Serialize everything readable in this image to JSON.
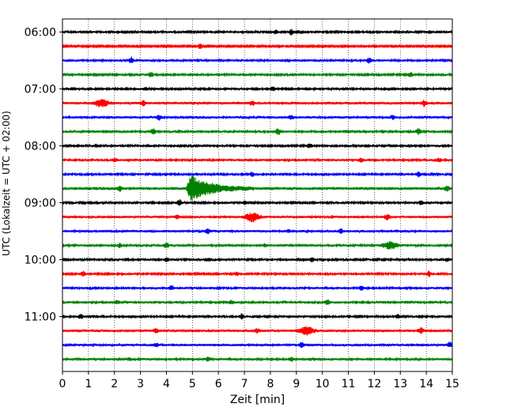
{
  "chart_data": {
    "type": "line",
    "title": "",
    "xlabel": "Zeit  [min]",
    "ylabel": "UTC (Lokalzeit = UTC + 02:00)",
    "xlim": [
      0,
      15
    ],
    "x_ticks": [
      0,
      1,
      2,
      3,
      4,
      5,
      6,
      7,
      8,
      9,
      10,
      11,
      12,
      13,
      14,
      15
    ],
    "y_tick_labels": [
      "06:00",
      "07:00",
      "08:00",
      "09:00",
      "10:00",
      "11:00"
    ],
    "y_tick_rows": [
      0,
      4,
      8,
      12,
      16,
      20
    ],
    "grid": "vertical-dotted",
    "colors": [
      "#000000",
      "#ff0000",
      "#0000ff",
      "#008000"
    ],
    "rows": [
      {
        "label": "06:00",
        "color": "#000000",
        "events": [
          [
            8.8,
            3
          ],
          [
            8.2,
            2
          ]
        ],
        "noise": 1.0
      },
      {
        "label": "06:15",
        "color": "#ff0000",
        "events": [
          [
            5.3,
            3
          ]
        ],
        "noise": 0.8
      },
      {
        "label": "06:30",
        "color": "#0000ff",
        "events": [
          [
            2.65,
            3.5
          ],
          [
            11.8,
            2.5
          ]
        ],
        "noise": 1.1
      },
      {
        "label": "06:45",
        "color": "#008000",
        "events": [
          [
            3.4,
            3
          ],
          [
            13.4,
            2.5
          ]
        ],
        "noise": 1.0
      },
      {
        "label": "07:00",
        "color": "#000000",
        "events": [
          [
            8.1,
            3
          ],
          [
            3.2,
            1.5
          ]
        ],
        "noise": 1.0
      },
      {
        "label": "07:15",
        "color": "#ff0000",
        "events": [
          [
            1.5,
            4
          ],
          [
            3.1,
            3
          ],
          [
            7.3,
            2.5
          ],
          [
            13.9,
            3.5
          ]
        ],
        "noise": 1.3
      },
      {
        "label": "07:30",
        "color": "#0000ff",
        "events": [
          [
            3.7,
            3
          ],
          [
            8.8,
            2
          ],
          [
            12.7,
            2
          ]
        ],
        "noise": 1.2
      },
      {
        "label": "07:45",
        "color": "#008000",
        "events": [
          [
            3.5,
            3
          ],
          [
            8.3,
            3.5
          ],
          [
            13.7,
            3.5
          ]
        ],
        "noise": 1.1
      },
      {
        "label": "08:00",
        "color": "#000000",
        "events": [
          [
            9.5,
            3
          ],
          [
            1.3,
            1.5
          ]
        ],
        "noise": 1.0
      },
      {
        "label": "08:15",
        "color": "#ff0000",
        "events": [
          [
            2.0,
            2
          ],
          [
            11.5,
            2.5
          ],
          [
            14.5,
            2
          ]
        ],
        "noise": 1.1
      },
      {
        "label": "08:30",
        "color": "#0000ff",
        "events": [
          [
            7.3,
            2.5
          ],
          [
            13.7,
            3
          ]
        ],
        "noise": 1.0
      },
      {
        "label": "08:45",
        "color": "#008000",
        "events": [
          [
            4.85,
            16
          ],
          [
            2.2,
            2.5
          ],
          [
            14.8,
            2.5
          ]
        ],
        "noise": 1.4
      },
      {
        "label": "09:00",
        "color": "#000000",
        "events": [
          [
            4.5,
            3
          ],
          [
            7.0,
            2
          ],
          [
            13.8,
            2.5
          ]
        ],
        "noise": 1.0
      },
      {
        "label": "09:15",
        "color": "#ff0000",
        "events": [
          [
            7.3,
            5
          ],
          [
            12.5,
            3.5
          ],
          [
            4.4,
            2
          ]
        ],
        "noise": 1.2
      },
      {
        "label": "09:30",
        "color": "#0000ff",
        "events": [
          [
            5.6,
            2.5
          ],
          [
            10.7,
            2.5
          ],
          [
            8.7,
            1.5
          ]
        ],
        "noise": 1.2
      },
      {
        "label": "09:45",
        "color": "#008000",
        "events": [
          [
            4.0,
            3
          ],
          [
            12.6,
            4
          ],
          [
            7.8,
            2
          ],
          [
            2.2,
            2
          ]
        ],
        "noise": 1.1
      },
      {
        "label": "10:00",
        "color": "#000000",
        "events": [
          [
            4.0,
            2.5
          ],
          [
            9.6,
            2.5
          ],
          [
            14.8,
            2
          ]
        ],
        "noise": 1.0
      },
      {
        "label": "10:15",
        "color": "#ff0000",
        "events": [
          [
            0.8,
            2.5
          ],
          [
            6.7,
            2
          ],
          [
            14.1,
            3
          ]
        ],
        "noise": 1.0
      },
      {
        "label": "10:30",
        "color": "#0000ff",
        "events": [
          [
            4.2,
            2.5
          ],
          [
            11.5,
            2.5
          ],
          [
            6.0,
            1.5
          ]
        ],
        "noise": 1.1
      },
      {
        "label": "10:45",
        "color": "#008000",
        "events": [
          [
            10.2,
            3
          ],
          [
            2.1,
            2
          ],
          [
            6.5,
            2
          ]
        ],
        "noise": 1.1
      },
      {
        "label": "11:00",
        "color": "#000000",
        "events": [
          [
            6.9,
            3
          ],
          [
            12.9,
            2.5
          ],
          [
            0.7,
            2.5
          ]
        ],
        "noise": 1.0
      },
      {
        "label": "11:15",
        "color": "#ff0000",
        "events": [
          [
            9.4,
            5
          ],
          [
            3.6,
            3
          ],
          [
            7.5,
            2.5
          ],
          [
            13.8,
            3
          ]
        ],
        "noise": 1.3
      },
      {
        "label": "11:30",
        "color": "#0000ff",
        "events": [
          [
            9.2,
            2.5
          ],
          [
            3.6,
            2
          ],
          [
            14.9,
            2.5
          ]
        ],
        "noise": 1.2
      },
      {
        "label": "11:45",
        "color": "#008000",
        "events": [
          [
            5.6,
            2.5
          ],
          [
            8.8,
            2.5
          ],
          [
            2.6,
            1.5
          ]
        ],
        "noise": 1.1
      }
    ]
  }
}
